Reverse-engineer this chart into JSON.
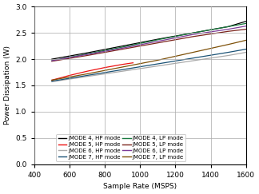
{
  "title": "",
  "xlabel": "Sample Rate (MSPS)",
  "ylabel": "Power Dissipation (W)",
  "xlim": [
    400,
    1600
  ],
  "ylim": [
    0,
    3
  ],
  "xticks": [
    400,
    600,
    800,
    1000,
    1200,
    1400,
    1600
  ],
  "yticks": [
    0,
    0.5,
    1,
    1.5,
    2,
    2.5,
    3
  ],
  "series": [
    {
      "label": "JMODE 4, HP mode",
      "color": "#000000",
      "style": "-",
      "x": [
        500,
        700,
        900,
        1100,
        1300,
        1500,
        1600
      ],
      "y": [
        2.0,
        2.12,
        2.25,
        2.38,
        2.5,
        2.62,
        2.72
      ]
    },
    {
      "label": "JMODE 5, HP mode",
      "color": "#ee1111",
      "style": "-",
      "x": [
        500,
        600,
        700,
        800,
        900,
        960
      ],
      "y": [
        1.6,
        1.69,
        1.77,
        1.84,
        1.9,
        1.93
      ]
    },
    {
      "label": "JMODE 6, HP mode",
      "color": "#aaaaaa",
      "style": "-",
      "x": [
        500,
        700,
        900,
        1100,
        1300,
        1500,
        1600
      ],
      "y": [
        1.57,
        1.67,
        1.77,
        1.87,
        1.97,
        2.07,
        2.13
      ]
    },
    {
      "label": "JMODE 7, HP mode",
      "color": "#1a5276",
      "style": "-",
      "x": [
        500,
        700,
        900,
        1100,
        1300,
        1500,
        1600
      ],
      "y": [
        1.58,
        1.69,
        1.8,
        1.91,
        2.02,
        2.13,
        2.19
      ]
    },
    {
      "label": "JMODE 4, LP mode",
      "color": "#1a7a40",
      "style": "-",
      "x": [
        500,
        700,
        900,
        1100,
        1300,
        1500,
        1600
      ],
      "y": [
        1.97,
        2.1,
        2.23,
        2.37,
        2.5,
        2.62,
        2.68
      ]
    },
    {
      "label": "JMODE 5, LP mode",
      "color": "#7b241c",
      "style": "-",
      "x": [
        500,
        700,
        900,
        1100,
        1300,
        1500,
        1600
      ],
      "y": [
        1.96,
        2.07,
        2.19,
        2.31,
        2.43,
        2.53,
        2.57
      ]
    },
    {
      "label": "JMODE 6, LP mode",
      "color": "#7d3c98",
      "style": "-",
      "x": [
        500,
        700,
        900,
        1100,
        1300,
        1500,
        1600
      ],
      "y": [
        1.97,
        2.09,
        2.21,
        2.34,
        2.47,
        2.57,
        2.63
      ]
    },
    {
      "label": "JMODE 7, LP mode",
      "color": "#7e5109",
      "style": "-",
      "x": [
        500,
        700,
        900,
        1100,
        1300,
        1500,
        1600
      ],
      "y": [
        1.6,
        1.72,
        1.85,
        1.98,
        2.13,
        2.28,
        2.36
      ]
    }
  ],
  "legend_ncol": 2,
  "fontsize": 6.5,
  "tick_fontsize": 6.5,
  "legend_fontsize": 5.0
}
